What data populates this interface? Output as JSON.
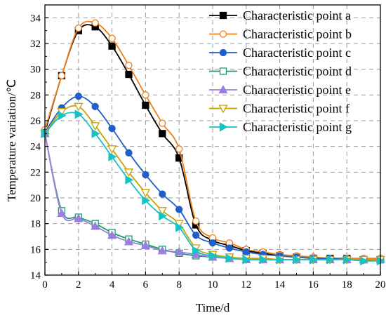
{
  "chart_data": {
    "type": "line",
    "xlabel": "Time/d",
    "ylabel": "Temperature variation/℃",
    "xlim": [
      0,
      20
    ],
    "ylim": [
      14,
      35
    ],
    "xticks": [
      0,
      2,
      4,
      6,
      8,
      10,
      12,
      14,
      16,
      18,
      20
    ],
    "yticks": [
      14,
      16,
      18,
      20,
      22,
      24,
      26,
      28,
      30,
      32,
      34
    ],
    "grid": true,
    "legend_position": "top-right",
    "x": [
      0,
      1,
      2,
      3,
      4,
      5,
      6,
      7,
      8,
      9,
      10,
      11,
      12,
      13,
      14,
      15,
      16,
      17,
      18,
      19,
      20
    ],
    "series": [
      {
        "name": "Characteristic point a",
        "color": "#000000",
        "marker": "square-filled",
        "values": [
          25.1,
          29.5,
          33.0,
          33.3,
          31.8,
          29.6,
          27.2,
          25.0,
          23.1,
          17.9,
          16.7,
          16.3,
          15.9,
          15.7,
          15.5,
          15.4,
          15.3,
          15.3,
          15.3,
          15.2,
          15.2
        ]
      },
      {
        "name": "Characteristic point b",
        "color": "#f07f17",
        "marker": "circle-open",
        "values": [
          25.3,
          29.5,
          33.2,
          33.6,
          32.4,
          30.3,
          28.0,
          25.8,
          23.8,
          18.2,
          16.9,
          16.5,
          16.0,
          15.8,
          15.6,
          15.5,
          15.4,
          15.3,
          15.3,
          15.3,
          15.3
        ]
      },
      {
        "name": "Characteristic point c",
        "color": "#1f5fc9",
        "marker": "circle-filled",
        "values": [
          25.1,
          27.0,
          27.9,
          27.1,
          25.4,
          23.5,
          21.8,
          20.3,
          19.1,
          17.1,
          16.5,
          16.1,
          15.8,
          15.6,
          15.5,
          15.4,
          15.3,
          15.3,
          15.2,
          15.2,
          15.2
        ]
      },
      {
        "name": "Characteristic point d",
        "color": "#1e9b6c",
        "marker": "square-open",
        "values": [
          25.0,
          19.0,
          18.5,
          18.0,
          17.3,
          16.8,
          16.4,
          16.0,
          15.7,
          15.5,
          15.4,
          15.3,
          15.3,
          15.2,
          15.2,
          15.2,
          15.2,
          15.2,
          15.2,
          15.2,
          15.2
        ]
      },
      {
        "name": "Characteristic point e",
        "color": "#9a7fe0",
        "marker": "triangle-up-filled",
        "values": [
          25.0,
          18.8,
          18.4,
          17.8,
          17.1,
          16.6,
          16.3,
          15.9,
          15.8,
          15.6,
          15.4,
          15.3,
          15.2,
          15.2,
          15.2,
          15.2,
          15.2,
          15.2,
          15.2,
          15.2,
          15.2
        ]
      },
      {
        "name": "Characteristic point f",
        "color": "#c9a200",
        "marker": "triangle-down-open",
        "values": [
          25.0,
          26.7,
          27.1,
          25.6,
          23.8,
          22.0,
          20.4,
          19.0,
          18.0,
          16.1,
          15.6,
          15.4,
          15.3,
          15.3,
          15.2,
          15.2,
          15.2,
          15.2,
          15.2,
          15.2,
          15.2
        ]
      },
      {
        "name": "Characteristic point g",
        "color": "#17c2c2",
        "marker": "triangle-right-filled",
        "values": [
          25.0,
          26.4,
          26.5,
          25.0,
          23.2,
          21.4,
          19.8,
          18.6,
          17.7,
          15.9,
          15.5,
          15.3,
          15.2,
          15.2,
          15.2,
          15.2,
          15.2,
          15.2,
          15.2,
          15.1,
          15.1
        ]
      }
    ]
  }
}
